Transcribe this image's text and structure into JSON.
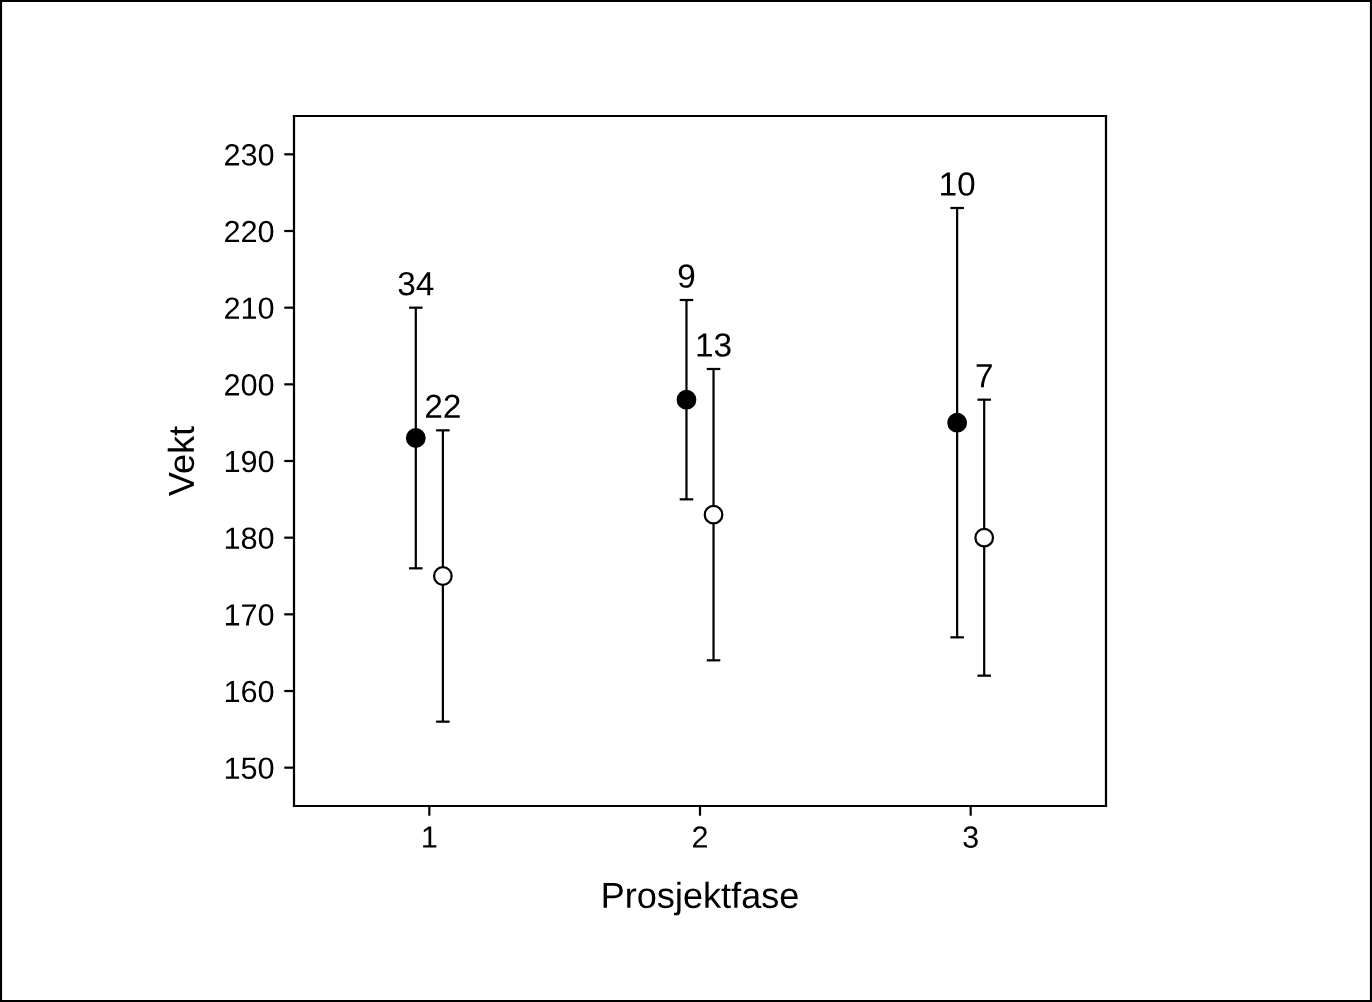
{
  "chart_data": {
    "type": "scatter",
    "xlabel": "Prosjektfase",
    "ylabel": "Vekt",
    "xlim": [
      0.5,
      3.5
    ],
    "xticks": [
      1,
      2,
      3
    ],
    "ylim": [
      145,
      235
    ],
    "yticks": [
      150,
      160,
      170,
      180,
      190,
      200,
      210,
      220,
      230
    ],
    "grid": false,
    "legend": false,
    "marker": "circle",
    "series": [
      {
        "color": "#000000",
        "x": [
          0.95,
          1.95,
          2.95
        ],
        "values": [
          193,
          198,
          195
        ],
        "errors": [
          [
            176,
            210
          ],
          [
            185,
            211
          ],
          [
            167,
            223
          ]
        ]
      },
      {
        "color": "#ffffff",
        "x": [
          1.05,
          2.05,
          3.05
        ],
        "values": [
          175,
          183,
          180
        ],
        "errors": [
          [
            156,
            194
          ],
          [
            164,
            202
          ],
          [
            162,
            198
          ]
        ]
      }
    ],
    "annotations": [
      {
        "text": "34",
        "x": 0.95,
        "y": 210
      },
      {
        "text": "22",
        "x": 1.05,
        "y": 194
      },
      {
        "text": "9",
        "x": 1.95,
        "y": 211
      },
      {
        "text": "13",
        "x": 2.05,
        "y": 202
      },
      {
        "text": "10",
        "x": 2.95,
        "y": 223
      },
      {
        "text": "7",
        "x": 3.05,
        "y": 198
      }
    ]
  }
}
